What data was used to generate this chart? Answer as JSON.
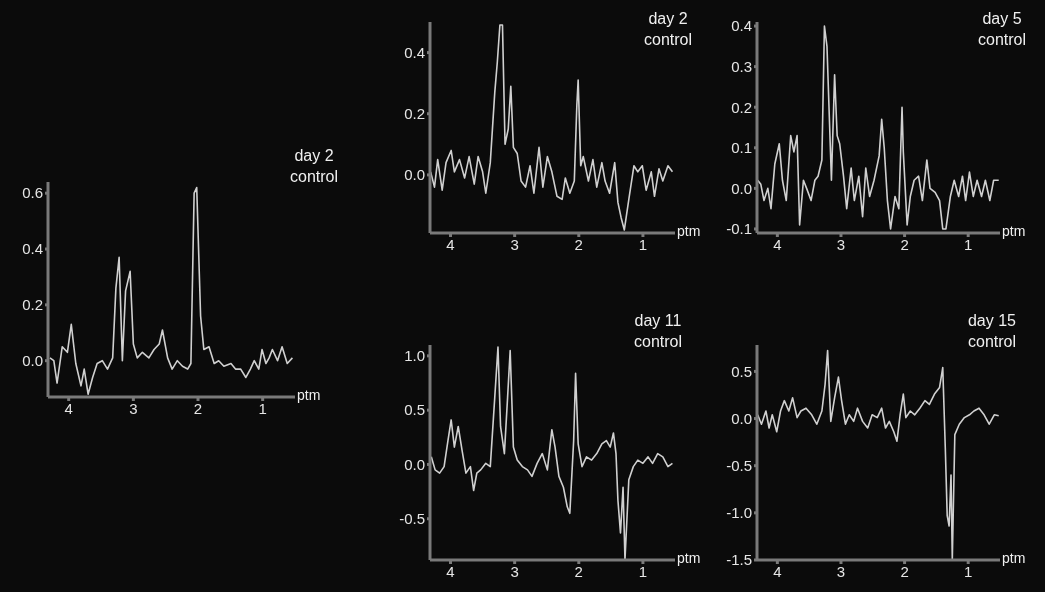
{
  "chart_data": [
    {
      "type": "line",
      "title": "day 2 control",
      "xlabel": "ptm",
      "color": "#d0d0d0",
      "xlim": [
        4.32,
        0.5
      ],
      "xticks": [
        4,
        3,
        2,
        1
      ],
      "ylim": [
        -0.13,
        0.64
      ],
      "yticks": [
        {
          "value": 0,
          "label": "0.0"
        },
        0.2,
        0.4,
        0.6
      ],
      "x": [
        4.29,
        4.23,
        4.18,
        4.1,
        4.02,
        3.96,
        3.89,
        3.81,
        3.76,
        3.7,
        3.63,
        3.56,
        3.48,
        3.4,
        3.32,
        3.27,
        3.22,
        3.17,
        3.12,
        3.05,
        3.0,
        2.94,
        2.86,
        2.76,
        2.68,
        2.6,
        2.55,
        2.47,
        2.4,
        2.32,
        2.24,
        2.16,
        2.11,
        2.06,
        2.02,
        1.96,
        1.91,
        1.83,
        1.75,
        1.68,
        1.6,
        1.49,
        1.42,
        1.34,
        1.26,
        1.19,
        1.13,
        1.06,
        1.01,
        0.95,
        0.9,
        0.85,
        0.77,
        0.7,
        0.62,
        0.54
      ],
      "values": [
        0.01,
        0,
        -0.08,
        0.05,
        0.03,
        0.13,
        -0.01,
        -0.09,
        -0.03,
        -0.12,
        -0.06,
        -0.01,
        0,
        -0.03,
        0.01,
        0.26,
        0.37,
        0,
        0.25,
        0.32,
        0.06,
        0.01,
        0.03,
        0.01,
        0.04,
        0.06,
        0.11,
        0.01,
        -0.03,
        0,
        -0.02,
        -0.03,
        -0.01,
        0.6,
        0.62,
        0.16,
        0.04,
        0.05,
        -0.01,
        0,
        -0.02,
        -0.01,
        -0.03,
        -0.03,
        -0.06,
        -0.03,
        0,
        -0.03,
        0.04,
        -0.01,
        0.01,
        0.04,
        0,
        0.05,
        -0.01,
        0.01
      ]
    },
    {
      "type": "line",
      "title": "day 2 control",
      "xlabel": "ptm",
      "color": "#d0d0d0",
      "xlim": [
        4.32,
        0.5
      ],
      "xticks": [
        4,
        3,
        2,
        1
      ],
      "ylim": [
        -0.19,
        0.5
      ],
      "yticks": [
        {
          "value": 0,
          "label": "0.0"
        },
        0.2,
        0.4
      ],
      "x": [
        4.31,
        4.25,
        4.2,
        4.13,
        4.07,
        3.99,
        3.94,
        3.86,
        3.78,
        3.71,
        3.63,
        3.57,
        3.5,
        3.45,
        3.38,
        3.31,
        3.27,
        3.23,
        3.19,
        3.15,
        3.1,
        3.06,
        3.02,
        2.96,
        2.9,
        2.83,
        2.76,
        2.7,
        2.62,
        2.56,
        2.49,
        2.42,
        2.34,
        2.26,
        2.21,
        2.14,
        2.07,
        2.03,
        2.01,
        1.97,
        1.93,
        1.85,
        1.78,
        1.72,
        1.64,
        1.59,
        1.52,
        1.44,
        1.39,
        1.34,
        1.29,
        1.22,
        1.14,
        1.08,
        1.01,
        0.95,
        0.87,
        0.82,
        0.75,
        0.69,
        0.61,
        0.54
      ],
      "values": [
        0.01,
        -0.04,
        0.05,
        -0.05,
        0.04,
        0.08,
        0.01,
        0.05,
        -0.01,
        0.06,
        -0.03,
        0.06,
        0.01,
        -0.06,
        0.04,
        0.27,
        0.37,
        0.49,
        0.49,
        0.1,
        0.15,
        0.29,
        0.09,
        0.07,
        -0.02,
        -0.04,
        0.03,
        -0.06,
        0.09,
        -0.04,
        0.06,
        0.01,
        -0.07,
        -0.08,
        -0.01,
        -0.06,
        -0.02,
        0.23,
        0.31,
        0.03,
        0.06,
        -0.02,
        0.05,
        -0.04,
        0.04,
        -0.02,
        -0.06,
        0.04,
        -0.09,
        -0.14,
        -0.18,
        -0.08,
        0.03,
        0.01,
        0.03,
        -0.05,
        0.01,
        -0.07,
        0.02,
        -0.02,
        0.03,
        0.01
      ]
    },
    {
      "type": "line",
      "title": "day 5 control",
      "xlabel": "ptm",
      "color": "#d0d0d0",
      "xlim": [
        4.32,
        0.5
      ],
      "xticks": [
        4,
        3,
        2,
        1
      ],
      "ylim": [
        -0.11,
        0.41
      ],
      "yticks": [
        -0.1,
        {
          "value": 0,
          "label": "0.0"
        },
        0.1,
        0.2,
        0.3,
        0.4
      ],
      "x": [
        4.31,
        4.26,
        4.21,
        4.15,
        4.1,
        4.04,
        3.97,
        3.92,
        3.86,
        3.79,
        3.74,
        3.69,
        3.65,
        3.59,
        3.54,
        3.47,
        3.41,
        3.36,
        3.3,
        3.26,
        3.22,
        3.15,
        3.1,
        3.06,
        3.02,
        2.96,
        2.91,
        2.84,
        2.79,
        2.72,
        2.66,
        2.61,
        2.55,
        2.48,
        2.4,
        2.36,
        2.32,
        2.27,
        2.22,
        2.15,
        2.09,
        2.04,
        2.02,
        1.96,
        1.91,
        1.85,
        1.78,
        1.72,
        1.65,
        1.6,
        1.52,
        1.45,
        1.4,
        1.35,
        1.28,
        1.22,
        1.15,
        1.09,
        1.04,
        0.98,
        0.92,
        0.86,
        0.79,
        0.73,
        0.66,
        0.6,
        0.52
      ],
      "values": [
        0.02,
        0.01,
        -0.03,
        0,
        -0.05,
        0.06,
        0.11,
        0.02,
        -0.03,
        0.13,
        0.09,
        0.13,
        -0.09,
        0.02,
        0,
        -0.03,
        0.02,
        0.03,
        0.07,
        0.4,
        0.35,
        0.02,
        0.28,
        0.13,
        0.11,
        0.03,
        -0.05,
        0.05,
        -0.03,
        0.03,
        -0.07,
        0.05,
        -0.02,
        0.02,
        0.08,
        0.17,
        0.1,
        -0.03,
        -0.1,
        -0.02,
        -0.05,
        0.2,
        0.09,
        -0.09,
        -0.02,
        0.02,
        0.03,
        -0.03,
        0.07,
        0,
        -0.01,
        -0.03,
        -0.1,
        -0.1,
        -0.02,
        0.02,
        -0.02,
        0.03,
        -0.03,
        0.04,
        -0.02,
        0.02,
        -0.02,
        0.02,
        -0.03,
        0.02,
        0.02
      ]
    },
    {
      "type": "line",
      "title": "day 11 control",
      "xlabel": "ptm",
      "color": "#d0d0d0",
      "xlim": [
        4.32,
        0.5
      ],
      "xticks": [
        4,
        3,
        2,
        1
      ],
      "ylim": [
        -0.88,
        1.1
      ],
      "yticks": [
        -0.5,
        {
          "value": 0,
          "label": "0.0"
        },
        0.5,
        {
          "value": 1,
          "label": "1.0"
        }
      ],
      "x": [
        4.3,
        4.24,
        4.17,
        4.1,
        4.04,
        3.99,
        3.94,
        3.88,
        3.82,
        3.76,
        3.69,
        3.64,
        3.59,
        3.53,
        3.45,
        3.38,
        3.31,
        3.26,
        3.22,
        3.16,
        3.11,
        3.07,
        3.02,
        2.96,
        2.88,
        2.8,
        2.73,
        2.65,
        2.57,
        2.49,
        2.42,
        2.37,
        2.31,
        2.24,
        2.18,
        2.14,
        2.08,
        2.05,
        2.01,
        1.95,
        1.88,
        1.8,
        1.72,
        1.64,
        1.57,
        1.51,
        1.46,
        1.42,
        1.39,
        1.35,
        1.31,
        1.28,
        1.22,
        1.15,
        1.08,
        1.0,
        0.92,
        0.85,
        0.77,
        0.69,
        0.61,
        0.54
      ],
      "values": [
        0.07,
        -0.05,
        -0.08,
        -0.02,
        0.22,
        0.41,
        0.16,
        0.35,
        0.13,
        -0.08,
        -0.02,
        -0.24,
        -0.08,
        -0.05,
        0.01,
        -0.02,
        0.62,
        1.08,
        0.35,
        0.1,
        0.62,
        1.05,
        0.16,
        0.04,
        -0.02,
        -0.05,
        -0.11,
        0.01,
        0.1,
        -0.05,
        0.32,
        0.16,
        -0.11,
        -0.21,
        -0.39,
        -0.45,
        0.22,
        0.84,
        0.19,
        -0.02,
        0.07,
        0.04,
        0.1,
        0.19,
        0.22,
        0.16,
        0.29,
        0.1,
        -0.33,
        -0.63,
        -0.21,
        -0.88,
        -0.14,
        -0.02,
        0.04,
        0.01,
        0.07,
        0.01,
        0.1,
        0.07,
        -0.02,
        0.01
      ]
    },
    {
      "type": "line",
      "title": "day 15 control",
      "xlabel": "ptm",
      "color": "#d0d0d0",
      "xlim": [
        4.32,
        0.5
      ],
      "xticks": [
        4,
        3,
        2,
        1
      ],
      "ylim": [
        -1.5,
        0.78
      ],
      "yticks": [
        {
          "value": -1.5,
          "label": "-1.5"
        },
        {
          "value": -1,
          "label": "-1.0"
        },
        -0.5,
        {
          "value": 0,
          "label": "0.0"
        },
        0.5
      ],
      "x": [
        4.31,
        4.25,
        4.18,
        4.13,
        4.08,
        4.01,
        3.95,
        3.89,
        3.82,
        3.76,
        3.69,
        3.63,
        3.55,
        3.46,
        3.38,
        3.3,
        3.25,
        3.21,
        3.16,
        3.1,
        3.04,
        2.99,
        2.93,
        2.87,
        2.8,
        2.74,
        2.66,
        2.58,
        2.51,
        2.43,
        2.36,
        2.3,
        2.24,
        2.17,
        2.12,
        2.07,
        2.02,
        1.98,
        1.91,
        1.84,
        1.76,
        1.68,
        1.61,
        1.53,
        1.45,
        1.4,
        1.36,
        1.33,
        1.3,
        1.27,
        1.25,
        1.21,
        1.14,
        1.06,
        0.98,
        0.91,
        0.83,
        0.75,
        0.67,
        0.59,
        0.52
      ],
      "values": [
        0.04,
        -0.06,
        0.08,
        -0.1,
        0.04,
        -0.14,
        0.08,
        0.19,
        0.08,
        0.22,
        0.01,
        0.08,
        0.11,
        0.04,
        -0.06,
        0.08,
        0.36,
        0.72,
        -0.03,
        0.22,
        0.44,
        0.19,
        -0.06,
        0.04,
        -0.03,
        0.11,
        -0.03,
        -0.1,
        0.04,
        0.01,
        0.11,
        -0.1,
        -0.03,
        -0.14,
        -0.24,
        0.04,
        0.26,
        0.01,
        0.08,
        0.04,
        0.11,
        0.19,
        0.15,
        0.26,
        0.33,
        0.54,
        -0.31,
        -1.03,
        -1.14,
        -0.6,
        -1.5,
        -0.17,
        -0.06,
        0.01,
        0.04,
        0.08,
        0.11,
        0.04,
        -0.06,
        0.04,
        0.03
      ]
    }
  ]
}
